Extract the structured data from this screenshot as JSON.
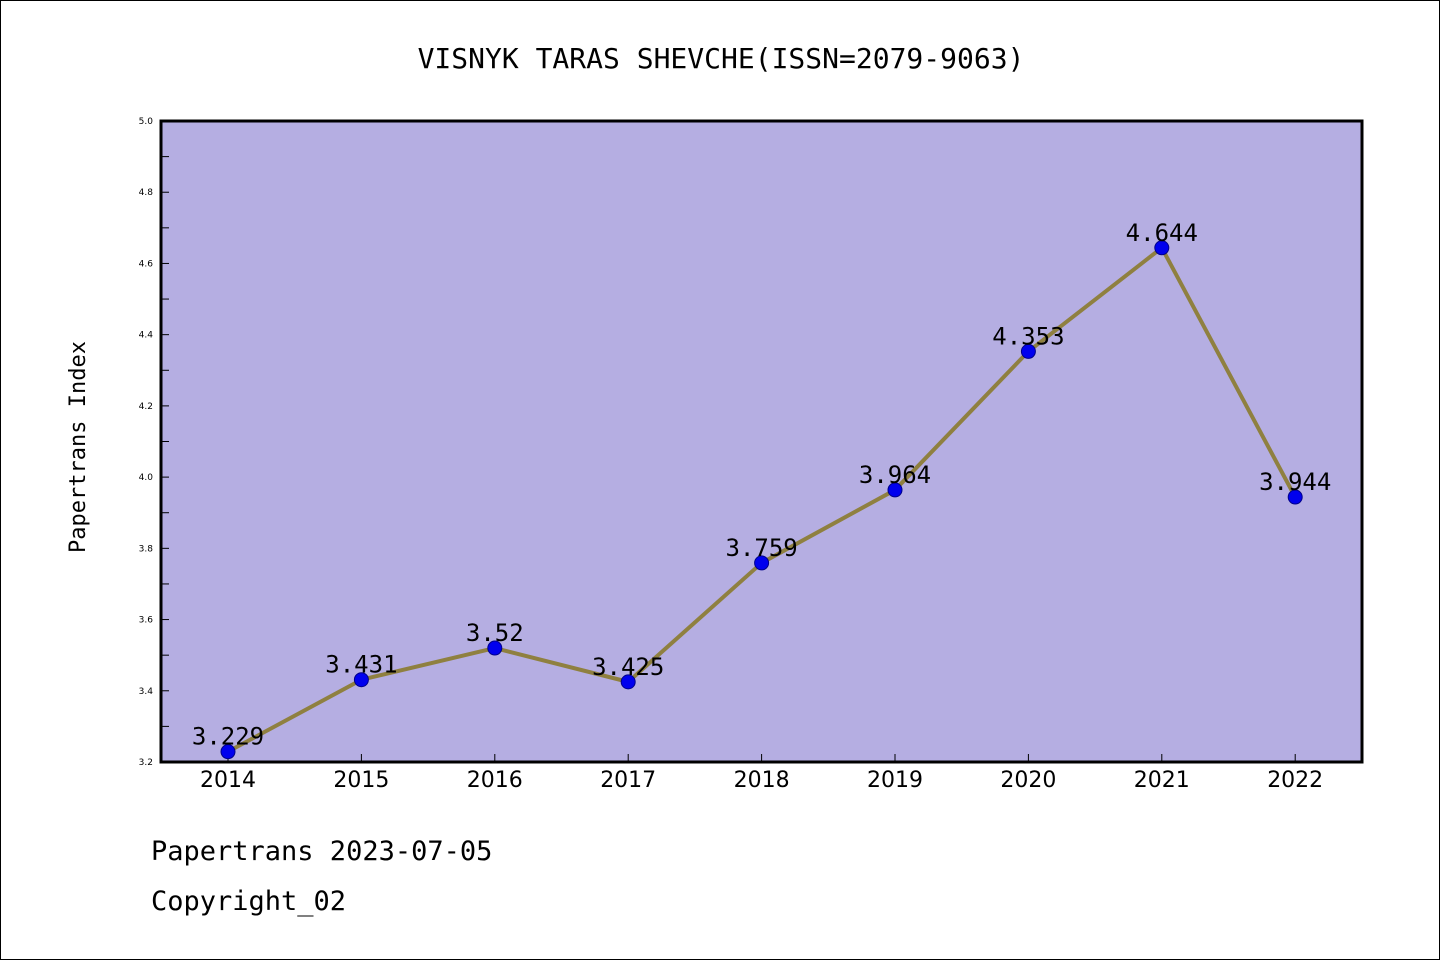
{
  "chart_data": {
    "type": "line",
    "title": "VISNYK TARAS SHEVCHE(ISSN=2079-9063)",
    "xlabel": "",
    "ylabel": "Papertrans Index",
    "x": [
      "2014",
      "2015",
      "2016",
      "2017",
      "2018",
      "2019",
      "2020",
      "2021",
      "2022"
    ],
    "series": [
      {
        "values": [
          3.229,
          3.431,
          3.52,
          3.425,
          3.759,
          3.964,
          4.353,
          4.644,
          3.944
        ],
        "labels": [
          "3.229",
          "3.431",
          "3.52",
          "3.425",
          "3.759",
          "3.964",
          "4.353",
          "4.644",
          "3.944"
        ]
      }
    ],
    "ylim": [
      3.2,
      5.0
    ],
    "yticks": [
      "3.2",
      "3.4",
      "3.6",
      "3.8",
      "4.0",
      "4.2",
      "4.4",
      "4.6",
      "4.8",
      "5.0"
    ],
    "grid": false,
    "colors": {
      "plot_background": "#b5aee2",
      "line": "#8f8040",
      "marker": "#0000ee",
      "axes": "#000000"
    }
  },
  "footer": {
    "line1": "Papertrans 2023-07-05",
    "line2": "Copyright_02"
  }
}
